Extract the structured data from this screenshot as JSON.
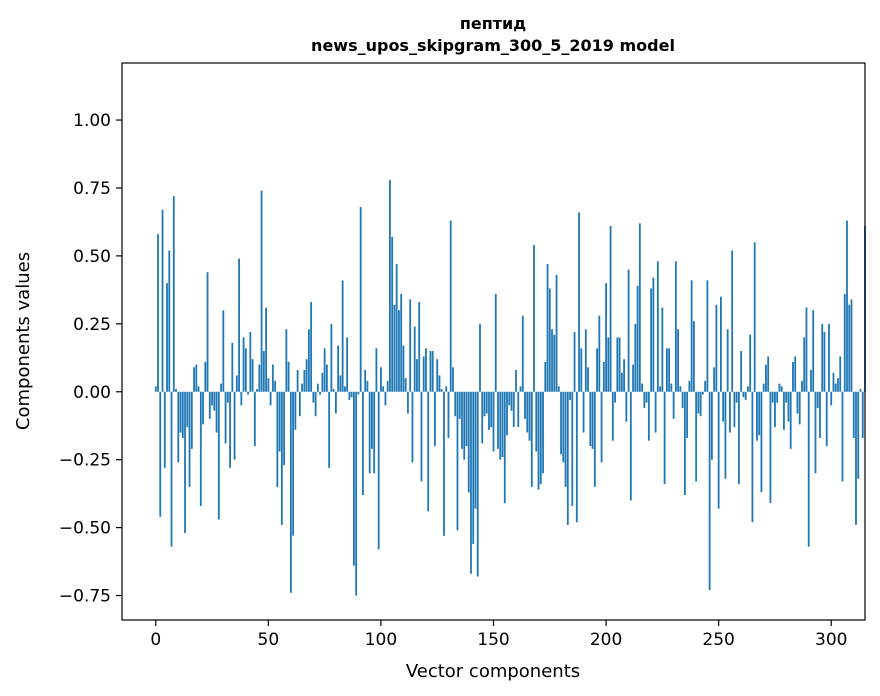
{
  "chart_data": {
    "type": "bar",
    "title_line1": "пептид",
    "title_line2": "news_upos_skipgram_300_5_2019 model",
    "xlabel": "Vector components",
    "ylabel": "Components values",
    "xlim": [
      -15,
      315
    ],
    "ylim": [
      -0.84,
      1.21
    ],
    "xticks": [
      0,
      50,
      100,
      150,
      200,
      250,
      300
    ],
    "xtick_labels": [
      "0",
      "50",
      "100",
      "150",
      "200",
      "250",
      "300"
    ],
    "yticks": [
      -0.75,
      -0.5,
      -0.25,
      0.0,
      0.25,
      0.5,
      0.75,
      1.0
    ],
    "ytick_labels": [
      "−0.75",
      "−0.50",
      "−0.25",
      "0.00",
      "0.25",
      "0.50",
      "0.75",
      "1.00"
    ],
    "bar_color": "#1f77b4",
    "values": [
      0.02,
      0.58,
      -0.46,
      0.67,
      -0.28,
      0.4,
      0.52,
      -0.57,
      0.72,
      0.01,
      -0.26,
      -0.15,
      -0.17,
      -0.52,
      -0.13,
      -0.35,
      -0.21,
      0.09,
      0.1,
      0.02,
      -0.42,
      -0.12,
      0.11,
      0.44,
      -0.1,
      -0.05,
      -0.07,
      -0.15,
      -0.47,
      0.03,
      0.3,
      -0.19,
      -0.04,
      -0.28,
      0.18,
      -0.25,
      0.06,
      0.49,
      -0.05,
      0.2,
      0.16,
      -0.01,
      0.22,
      0.12,
      -0.2,
      0.01,
      0.1,
      0.74,
      0.15,
      0.31,
      0.05,
      -0.05,
      0.1,
      0.04,
      -0.35,
      -0.22,
      -0.49,
      -0.27,
      0.23,
      0.11,
      -0.74,
      -0.53,
      -0.14,
      0.08,
      -0.09,
      0.03,
      0.08,
      0.12,
      0.23,
      0.33,
      -0.04,
      -0.09,
      0.03,
      -0.01,
      0.07,
      0.16,
      0.1,
      -0.28,
      0.25,
      0.01,
      -0.08,
      0.17,
      0.06,
      0.41,
      0.02,
      0.2,
      -0.03,
      -0.02,
      -0.64,
      -0.75,
      -0.01,
      0.68,
      -0.38,
      0.08,
      0.04,
      -0.3,
      -0.21,
      -0.3,
      0.16,
      -0.58,
      0.09,
      0.02,
      -0.05,
      0.04,
      0.78,
      0.57,
      0.32,
      0.47,
      0.3,
      0.36,
      0.17,
      0.05,
      -0.08,
      0.34,
      -0.26,
      0.24,
      0.12,
      0.33,
      -0.33,
      0.13,
      0.16,
      -0.44,
      0.15,
      0.15,
      -0.2,
      0.12,
      0.06,
      0.01,
      -0.53,
      0.02,
      -0.17,
      0.63,
      0.09,
      -0.09,
      -0.51,
      -0.1,
      -0.21,
      -0.25,
      -0.2,
      -0.37,
      -0.67,
      -0.56,
      -0.43,
      -0.68,
      0.25,
      -0.19,
      -0.09,
      -0.08,
      -0.14,
      -0.13,
      -0.22,
      0.36,
      -0.21,
      -0.25,
      -0.24,
      -0.41,
      -0.16,
      -0.05,
      -0.07,
      -0.13,
      0.08,
      -0.13,
      0.02,
      0.28,
      -0.1,
      -0.15,
      -0.18,
      -0.35,
      0.54,
      -0.22,
      -0.36,
      -0.34,
      -0.3,
      0.11,
      0.47,
      0.38,
      0.23,
      0.21,
      0.43,
      0.02,
      -0.23,
      -0.26,
      -0.35,
      -0.49,
      -0.03,
      -0.42,
      0.22,
      -0.48,
      0.66,
      0.16,
      -0.15,
      0.23,
      0.09,
      -0.2,
      -0.21,
      -0.35,
      0.16,
      0.28,
      -0.26,
      0.11,
      0.4,
      0.2,
      0.61,
      -0.18,
      -0.04,
      0.2,
      0.2,
      0.07,
      0.12,
      -0.11,
      0.45,
      -0.4,
      0.1,
      0.25,
      0.39,
      0.62,
      0.03,
      -0.06,
      -0.04,
      -0.18,
      0.38,
      0.42,
      -0.15,
      0.48,
      0.02,
      0.31,
      -0.34,
      0.16,
      0.16,
      0.03,
      -0.1,
      0.48,
      0.23,
      0.02,
      -0.06,
      -0.38,
      -0.17,
      0.04,
      0.41,
      0.26,
      -0.33,
      -0.08,
      -0.09,
      -0.01,
      0.04,
      0.41,
      -0.73,
      -0.25,
      0.09,
      0.32,
      -0.43,
      0.35,
      -0.11,
      -0.32,
      0.23,
      -0.15,
      0.52,
      -0.13,
      -0.04,
      -0.34,
      0.15,
      -0.02,
      -0.03,
      0.02,
      0.21,
      -0.48,
      0.55,
      -0.18,
      -0.16,
      -0.37,
      0.03,
      0.1,
      0.13,
      -0.41,
      -0.04,
      -0.13,
      -0.04,
      0.03,
      0.02,
      -0.14,
      -0.04,
      -0.11,
      -0.21,
      0.11,
      0.13,
      -0.08,
      -0.12,
      0.04,
      0.2,
      0.31,
      -0.57,
      0.08,
      0.3,
      -0.3,
      -0.06,
      -0.17,
      0.25,
      0.22,
      -0.2,
      0.25,
      -0.05,
      0.07,
      0.03,
      0.05,
      0.13,
      -0.33,
      0.36,
      0.63,
      0.32,
      0.34,
      -0.17,
      -0.49,
      -0.32,
      0.01,
      -0.17,
      0.61
    ]
  }
}
